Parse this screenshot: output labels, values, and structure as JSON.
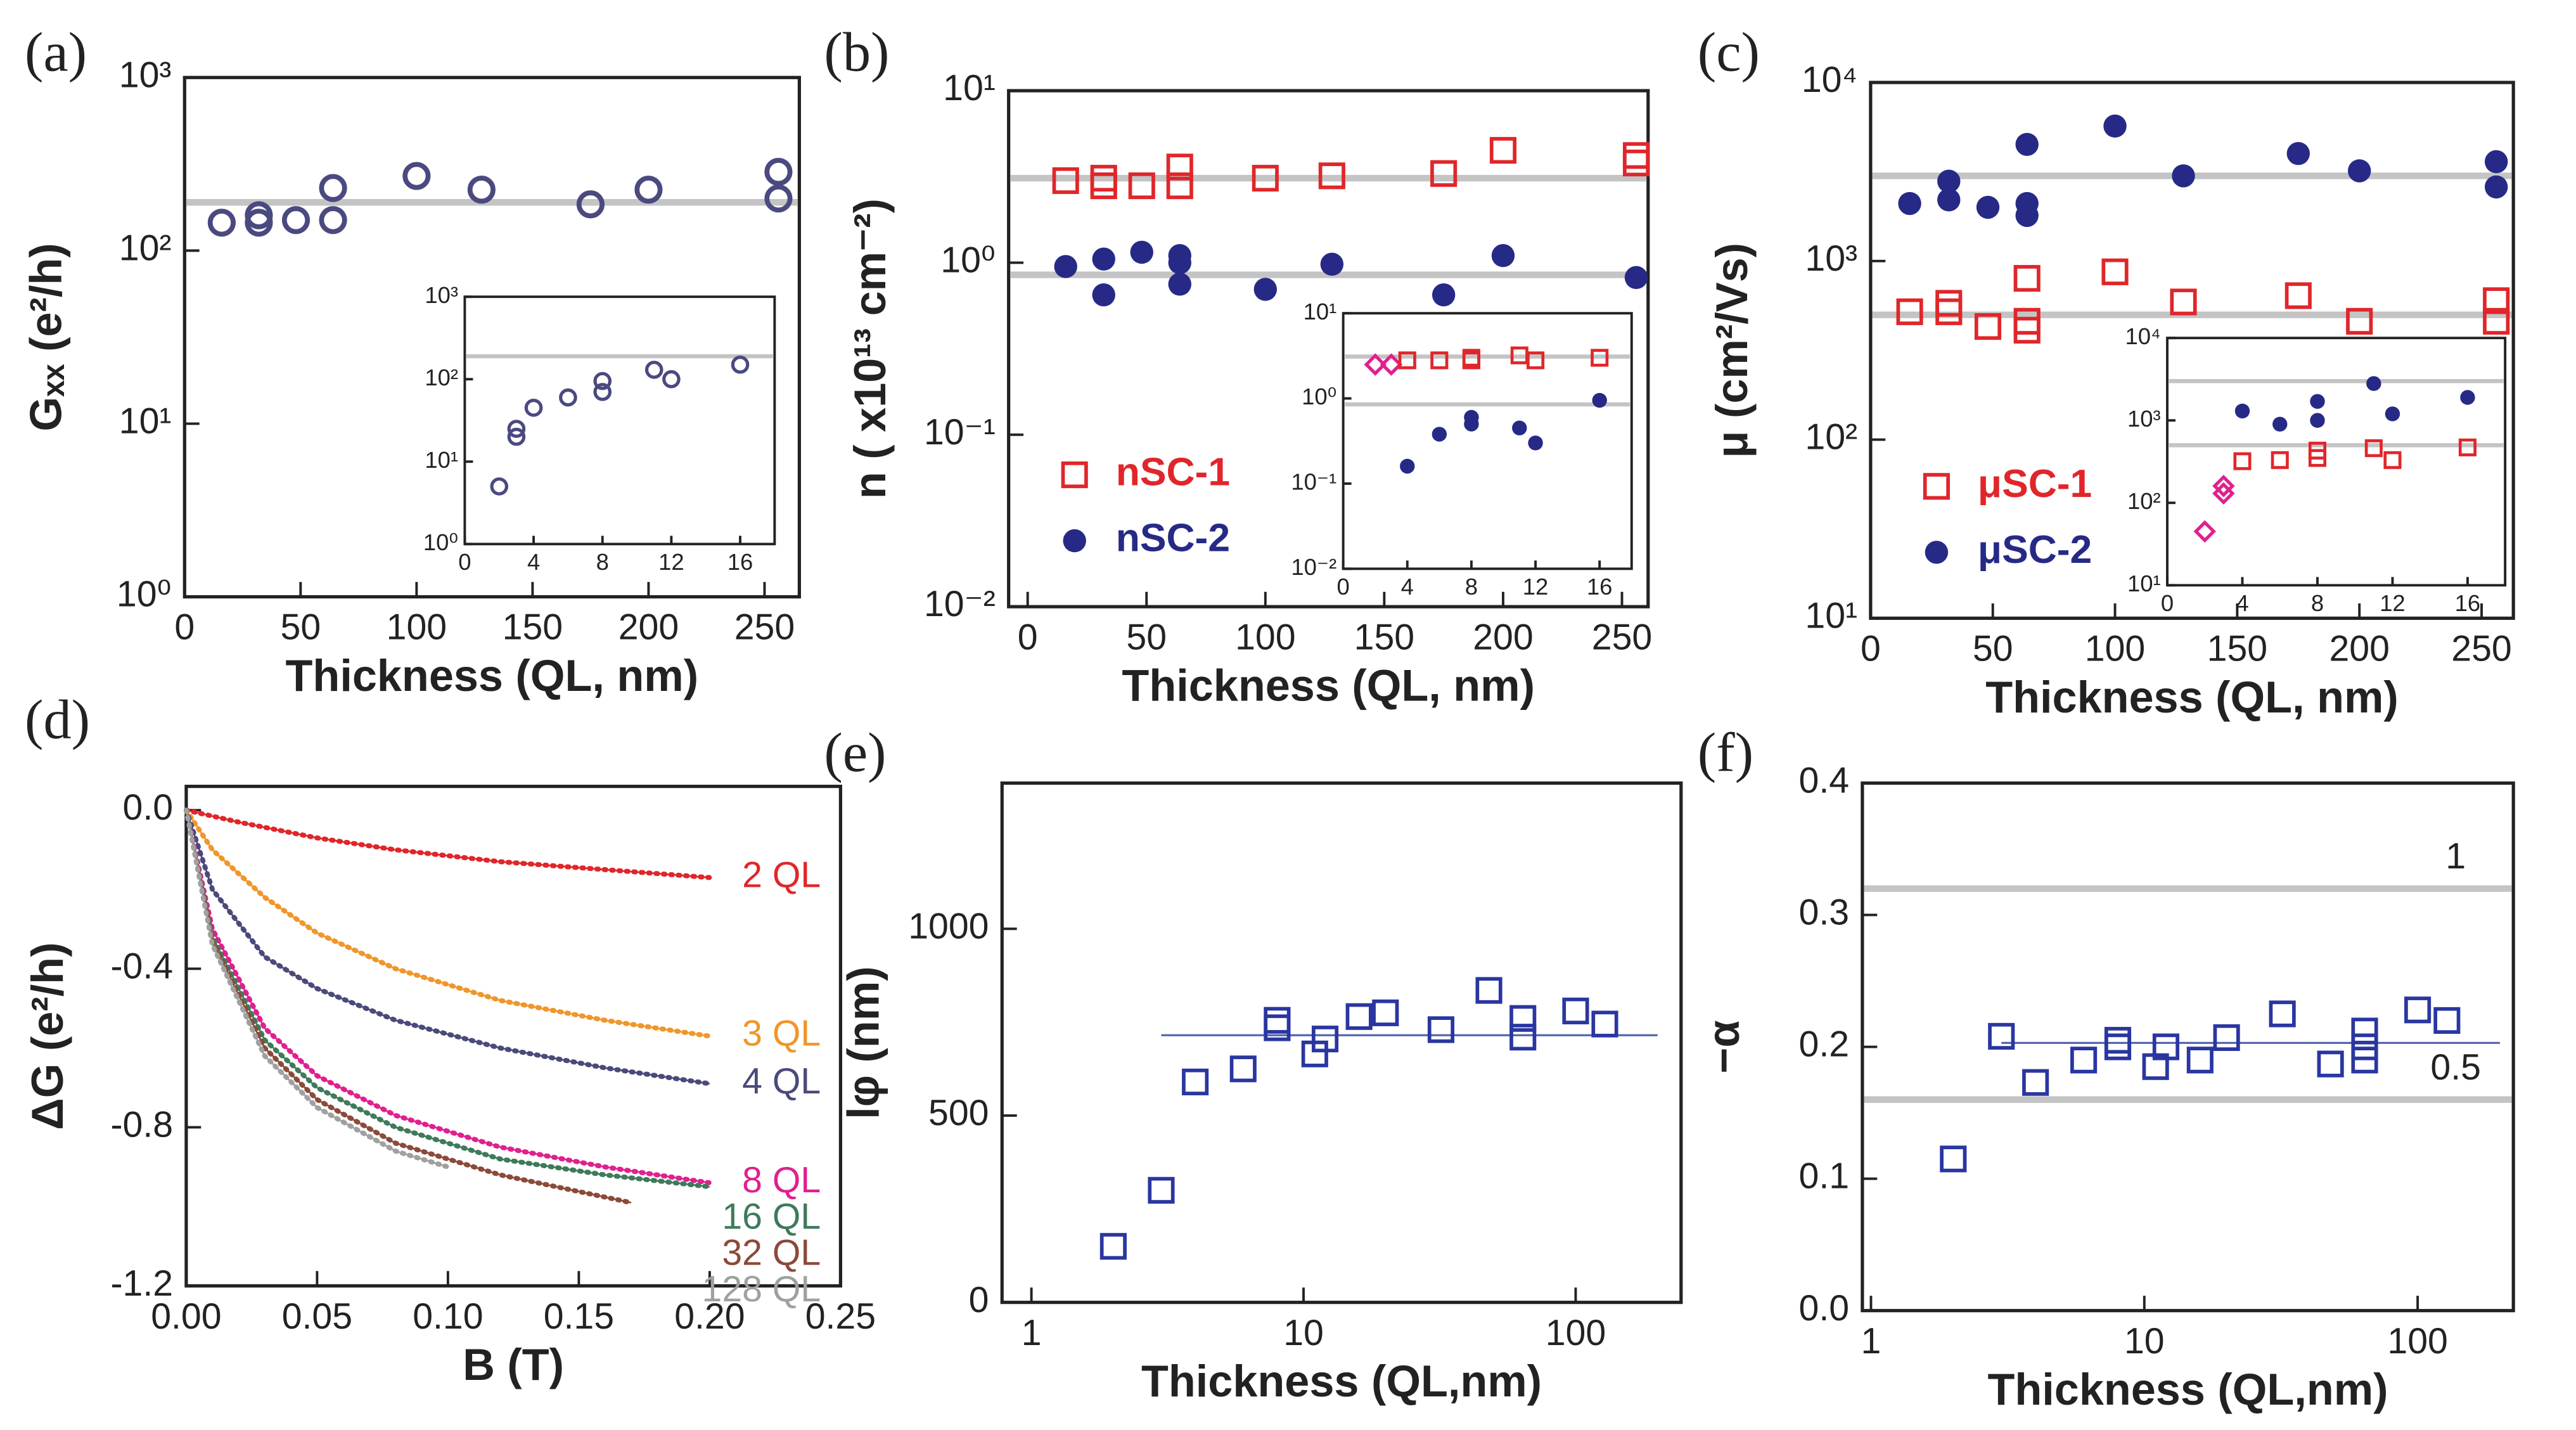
{
  "chart_data": [
    {
      "type": "scatter",
      "label": "(a)",
      "xlabel": "Thickness (QL, nm)",
      "ylabel": "Gₓₓ (e²/h)",
      "xlim": [
        0,
        265
      ],
      "xticks": [
        0,
        50,
        100,
        150,
        200,
        250
      ],
      "ylog": true,
      "ylim": [
        1,
        1000
      ],
      "yticks": [
        {
          "value": 1,
          "label": "10⁰"
        },
        {
          "value": 10,
          "label": "10¹"
        },
        {
          "value": 100,
          "label": "10²"
        },
        {
          "value": 1000,
          "label": "10³"
        }
      ],
      "reference_lines": [
        {
          "value": 190
        }
      ],
      "series": [
        {
          "color": "#4a4a80",
          "marker": "open-circle",
          "x": [
            16,
            32,
            32,
            48,
            64,
            64,
            100,
            128,
            175,
            200,
            256,
            256
          ],
          "values": [
            145,
            145,
            160,
            150,
            150,
            230,
            270,
            225,
            185,
            225,
            200,
            285
          ]
        }
      ],
      "inset": {
        "type": "scatter",
        "xlim": [
          0,
          18
        ],
        "xticks": [
          0,
          4,
          8,
          12,
          16
        ],
        "ylog": true,
        "ylim": [
          1,
          1000
        ],
        "yticks": [
          {
            "value": 1,
            "label": "10⁰"
          },
          {
            "value": 10,
            "label": "10¹"
          },
          {
            "value": 100,
            "label": "10²"
          },
          {
            "value": 1000,
            "label": "10³"
          }
        ],
        "reference_lines": [
          {
            "value": 190
          }
        ],
        "series": [
          {
            "color": "#4a4a80",
            "marker": "open-circle",
            "x": [
              2,
              3,
              3,
              4,
              6,
              8,
              8,
              11,
              12,
              16
            ],
            "values": [
              5,
              20,
              25,
              45,
              60,
              70,
              95,
              130,
              100,
              150
            ]
          }
        ]
      }
    },
    {
      "type": "scatter",
      "label": "(b)",
      "xlabel": "Thickness (QL, nm)",
      "ylabel": "n ( x10¹³ cm⁻²)",
      "xlim": [
        -8,
        261
      ],
      "xticks": [
        0,
        50,
        100,
        150,
        200,
        250
      ],
      "ylog": true,
      "ylim": [
        0.01,
        10
      ],
      "yticks": [
        {
          "value": 0.01,
          "label": "10⁻²"
        },
        {
          "value": 0.1,
          "label": "10⁻¹"
        },
        {
          "value": 1,
          "label": "10⁰"
        },
        {
          "value": 10,
          "label": "10¹"
        }
      ],
      "reference_lines": [
        {
          "value": 3.1
        },
        {
          "value": 0.85
        }
      ],
      "legend": "lower left",
      "series": [
        {
          "name": "nSC-1",
          "color": "#e0262a",
          "marker": "open-square",
          "x": [
            16,
            32,
            32,
            48,
            64,
            64,
            100,
            128,
            175,
            200,
            256,
            256
          ],
          "values": [
            3,
            2.8,
            3.1,
            2.8,
            2.8,
            3.6,
            3.1,
            3.2,
            3.3,
            4.5,
            3.8,
            4.2
          ]
        },
        {
          "name": "nSC-2",
          "color": "#262a86",
          "marker": "filled-circle",
          "x": [
            16,
            32,
            32,
            48,
            64,
            64,
            64,
            100,
            128,
            175,
            200,
            256
          ],
          "values": [
            0.95,
            0.65,
            1.05,
            1.15,
            0.75,
            1.0,
            1.1,
            0.7,
            0.98,
            0.65,
            1.1,
            0.82
          ]
        }
      ],
      "inset": {
        "type": "scatter",
        "xlim": [
          0,
          18
        ],
        "xticks": [
          0,
          4,
          8,
          12,
          16
        ],
        "ylog": true,
        "ylim": [
          0.01,
          10
        ],
        "yticks": [
          {
            "value": 0.01,
            "label": "10⁻²"
          },
          {
            "value": 0.1,
            "label": "10⁻¹"
          },
          {
            "value": 1,
            "label": "10⁰"
          },
          {
            "value": 10,
            "label": "10¹"
          }
        ],
        "reference_lines": [
          {
            "value": 3.1
          },
          {
            "value": 0.85
          }
        ],
        "series": [
          {
            "color": "#e0208f",
            "marker": "open-diamond",
            "x": [
              2,
              3
            ],
            "values": [
              2.5,
              2.5
            ]
          },
          {
            "color": "#e0262a",
            "marker": "open-square",
            "x": [
              4,
              6,
              8,
              8,
              11,
              12,
              16
            ],
            "values": [
              2.8,
              2.8,
              2.8,
              3,
              3.2,
              2.8,
              3
            ]
          },
          {
            "color": "#262a86",
            "marker": "filled-circle",
            "x": [
              4,
              6,
              8,
              8,
              11,
              12,
              16
            ],
            "values": [
              0.16,
              0.38,
              0.5,
              0.6,
              0.45,
              0.3,
              0.95
            ]
          }
        ]
      }
    },
    {
      "type": "scatter",
      "label": "(c)",
      "xlabel": "Thickness (QL, nm)",
      "ylabel": "μ (cm²/Vs)",
      "xlim": [
        0,
        263
      ],
      "xticks": [
        0,
        50,
        100,
        150,
        200,
        250
      ],
      "ylog": true,
      "ylim": [
        10,
        10000
      ],
      "yticks": [
        {
          "value": 10,
          "label": "10¹"
        },
        {
          "value": 100,
          "label": "10²"
        },
        {
          "value": 1000,
          "label": "10³"
        },
        {
          "value": 10000,
          "label": "10⁴"
        }
      ],
      "reference_lines": [
        {
          "value": 3000
        },
        {
          "value": 500
        }
      ],
      "legend": "lower left",
      "series": [
        {
          "name": "μSC-1",
          "color": "#e0262a",
          "marker": "open-square",
          "x": [
            16,
            32,
            32,
            48,
            64,
            64,
            64,
            100,
            128,
            175,
            200,
            256,
            256
          ],
          "values": [
            520,
            520,
            580,
            430,
            410,
            460,
            800,
            870,
            590,
            640,
            460,
            460,
            600
          ]
        },
        {
          "name": "μSC-2",
          "color": "#262a86",
          "marker": "filled-circle",
          "x": [
            16,
            32,
            32,
            48,
            64,
            64,
            64,
            100,
            128,
            175,
            200,
            256,
            256
          ],
          "values": [
            2100,
            2200,
            2800,
            2000,
            1800,
            2100,
            4500,
            5700,
            3000,
            4000,
            3200,
            2600,
            3600
          ]
        }
      ],
      "inset": {
        "type": "scatter",
        "xlim": [
          0,
          18
        ],
        "xticks": [
          0,
          4,
          8,
          12,
          16
        ],
        "ylog": true,
        "ylim": [
          10,
          10000
        ],
        "yticks": [
          {
            "value": 10,
            "label": "10¹"
          },
          {
            "value": 100,
            "label": "10²"
          },
          {
            "value": 1000,
            "label": "10³"
          },
          {
            "value": 10000,
            "label": "10⁴"
          }
        ],
        "reference_lines": [
          {
            "value": 3000
          },
          {
            "value": 500
          }
        ],
        "series": [
          {
            "color": "#e0208f",
            "marker": "open-diamond",
            "x": [
              2,
              3,
              3
            ],
            "values": [
              45,
              130,
              160
            ]
          },
          {
            "color": "#e0262a",
            "marker": "open-square",
            "x": [
              4,
              6,
              8,
              8,
              11,
              12,
              16
            ],
            "values": [
              320,
              330,
              350,
              430,
              460,
              330,
              470
            ]
          },
          {
            "color": "#262a86",
            "marker": "filled-circle",
            "x": [
              4,
              6,
              8,
              8,
              11,
              12,
              16
            ],
            "values": [
              1300,
              900,
              1000,
              1700,
              2800,
              1200,
              1900
            ]
          }
        ]
      }
    },
    {
      "type": "line",
      "label": "(d)",
      "xlabel": "B (T)",
      "ylabel": "ΔG (e²/h)",
      "xlim": [
        0,
        0.25
      ],
      "xticks": [
        {
          "value": 0,
          "label": "0.00"
        },
        {
          "value": 0.05,
          "label": "0.05"
        },
        {
          "value": 0.1,
          "label": "0.10"
        },
        {
          "value": 0.15,
          "label": "0.15"
        },
        {
          "value": 0.2,
          "label": "0.20"
        },
        {
          "value": 0.25,
          "label": "0.25"
        }
      ],
      "ylim": [
        -1.2,
        0.06
      ],
      "yticks": [
        -1.2,
        -0.8,
        -0.4,
        {
          "value": 0,
          "label": "0.0"
        }
      ],
      "series": [
        {
          "name": "2 QL",
          "color": "#e0262a",
          "x": [
            0,
            0.02,
            0.05,
            0.08,
            0.12,
            0.16,
            0.2
          ],
          "values": [
            0,
            -0.03,
            -0.07,
            -0.1,
            -0.13,
            -0.15,
            -0.17
          ]
        },
        {
          "name": "3 QL",
          "color": "#f0962a",
          "x": [
            0,
            0.01,
            0.03,
            0.05,
            0.08,
            0.12,
            0.16,
            0.2
          ],
          "values": [
            0,
            -0.1,
            -0.22,
            -0.31,
            -0.4,
            -0.48,
            -0.53,
            -0.57
          ]
        },
        {
          "name": "4 QL",
          "color": "#4a4a7a",
          "x": [
            0,
            0.01,
            0.03,
            0.05,
            0.08,
            0.12,
            0.16,
            0.2
          ],
          "values": [
            0,
            -0.2,
            -0.37,
            -0.45,
            -0.53,
            -0.6,
            -0.65,
            -0.69
          ]
        },
        {
          "name": "8 QL",
          "color": "#e0208f",
          "x": [
            0,
            0.01,
            0.03,
            0.05,
            0.08,
            0.12,
            0.16,
            0.2
          ],
          "values": [
            0,
            -0.3,
            -0.55,
            -0.67,
            -0.77,
            -0.85,
            -0.9,
            -0.94
          ]
        },
        {
          "name": "16 QL",
          "color": "#3f7a5a",
          "x": [
            0,
            0.01,
            0.03,
            0.05,
            0.08,
            0.12,
            0.16,
            0.2
          ],
          "values": [
            0,
            -0.32,
            -0.58,
            -0.7,
            -0.8,
            -0.88,
            -0.92,
            -0.95
          ]
        },
        {
          "name": "32 QL",
          "color": "#8b4a3a",
          "x": [
            0,
            0.01,
            0.03,
            0.05,
            0.08,
            0.12,
            0.17
          ],
          "values": [
            0,
            -0.33,
            -0.6,
            -0.73,
            -0.84,
            -0.92,
            -0.99
          ]
        },
        {
          "name": "128 QL",
          "color": "#a0a0a0",
          "x": [
            0,
            0.01,
            0.03,
            0.05,
            0.08,
            0.1
          ],
          "values": [
            0,
            -0.34,
            -0.62,
            -0.75,
            -0.86,
            -0.9
          ]
        }
      ]
    },
    {
      "type": "scatter",
      "label": "(e)",
      "xlabel": "Thickness (QL,nm)",
      "ylabel": "lφ (nm)",
      "xlog": true,
      "xlim": [
        0.78,
        244
      ],
      "xticks": [
        1,
        10,
        100
      ],
      "ylim": [
        0,
        1390
      ],
      "yticks": [
        0,
        500,
        1000
      ],
      "fit_lines": [
        {
          "value": 715,
          "x": [
            3,
            200
          ]
        }
      ],
      "series": [
        {
          "color": "#2a36a0",
          "marker": "open-square",
          "x": [
            2,
            3,
            4,
            6,
            8,
            8,
            11,
            12,
            16,
            20,
            32,
            48,
            64,
            64,
            100,
            128
          ],
          "values": [
            150,
            300,
            590,
            625,
            735,
            755,
            665,
            705,
            765,
            775,
            730,
            835,
            710,
            760,
            780,
            745
          ]
        }
      ]
    },
    {
      "type": "scatter",
      "label": "(f)",
      "xlabel": "Thickness (QL,nm)",
      "ylabel": "−α",
      "xlog": true,
      "xlim": [
        0.93,
        224
      ],
      "xticks": [
        1,
        10,
        100
      ],
      "ylim": [
        0,
        0.4
      ],
      "yticks": [
        {
          "value": 0,
          "label": "0.0"
        },
        0.1,
        0.2,
        0.3,
        0.4
      ],
      "reference_lines": [
        {
          "value": 0.32,
          "label": "1"
        },
        {
          "value": 0.16,
          "label": "0.5"
        }
      ],
      "fit_lines": [
        {
          "value": 0.203,
          "x": [
            3,
            200
          ]
        }
      ],
      "series": [
        {
          "color": "#2a36a0",
          "marker": "open-square",
          "x": [
            2,
            3,
            4,
            6,
            8,
            8,
            11,
            12,
            16,
            20,
            32,
            48,
            64,
            64,
            64,
            100,
            128
          ],
          "values": [
            0.115,
            0.208,
            0.173,
            0.19,
            0.2,
            0.205,
            0.185,
            0.2,
            0.19,
            0.207,
            0.225,
            0.187,
            0.19,
            0.2,
            0.212,
            0.228,
            0.22
          ]
        }
      ]
    }
  ]
}
